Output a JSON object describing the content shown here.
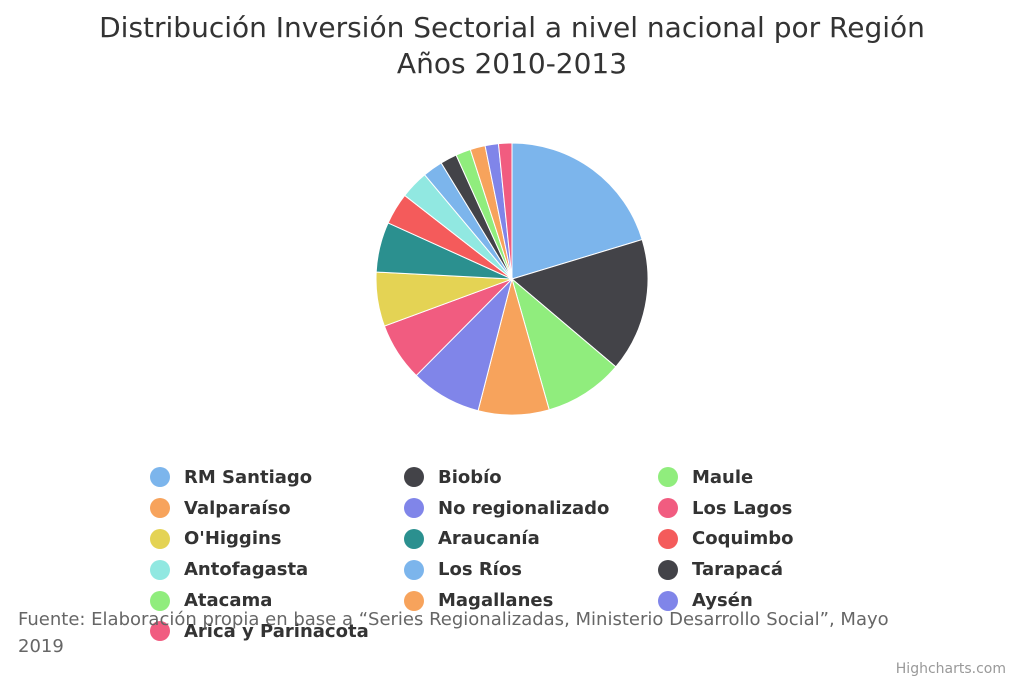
{
  "chart_data": {
    "type": "pie",
    "title": "Distribución Inversión Sectorial a nivel nacional por Región",
    "subtitle": "Años 2010-2013",
    "legend_position": "bottom",
    "series": [
      {
        "data": [
          {
            "name": "RM Santiago",
            "value": 20.5,
            "color": "#7cb5ec"
          },
          {
            "name": "Biobío",
            "value": 16.0,
            "color": "#434348"
          },
          {
            "name": "Maule",
            "value": 9.5,
            "color": "#90ed7d"
          },
          {
            "name": "Valparaíso",
            "value": 8.5,
            "color": "#f7a35c"
          },
          {
            "name": "No regionalizado",
            "value": 8.5,
            "color": "#8085e9"
          },
          {
            "name": "Los Lagos",
            "value": 7.0,
            "color": "#f15c80"
          },
          {
            "name": "O'Higgins",
            "value": 6.5,
            "color": "#e4d354"
          },
          {
            "name": "Araucanía",
            "value": 6.0,
            "color": "#2b908f"
          },
          {
            "name": "Coquimbo",
            "value": 3.8,
            "color": "#f45b5b"
          },
          {
            "name": "Antofagasta",
            "value": 3.4,
            "color": "#91e8e1"
          },
          {
            "name": "Los Ríos",
            "value": 2.4,
            "color": "#7cb5ec"
          },
          {
            "name": "Tarapacá",
            "value": 2.0,
            "color": "#434348"
          },
          {
            "name": "Atacama",
            "value": 1.8,
            "color": "#90ed7d"
          },
          {
            "name": "Magallanes",
            "value": 1.8,
            "color": "#f7a35c"
          },
          {
            "name": "Aysén",
            "value": 1.6,
            "color": "#8085e9"
          },
          {
            "name": "Arica y Parinacota",
            "value": 1.6,
            "color": "#f15c80"
          }
        ]
      }
    ],
    "caption": "Fuente: Elaboración propia en base a “Series Regionalizadas, Ministerio Desarrollo Social”, Mayo 2019",
    "credits": "Highcharts.com"
  }
}
